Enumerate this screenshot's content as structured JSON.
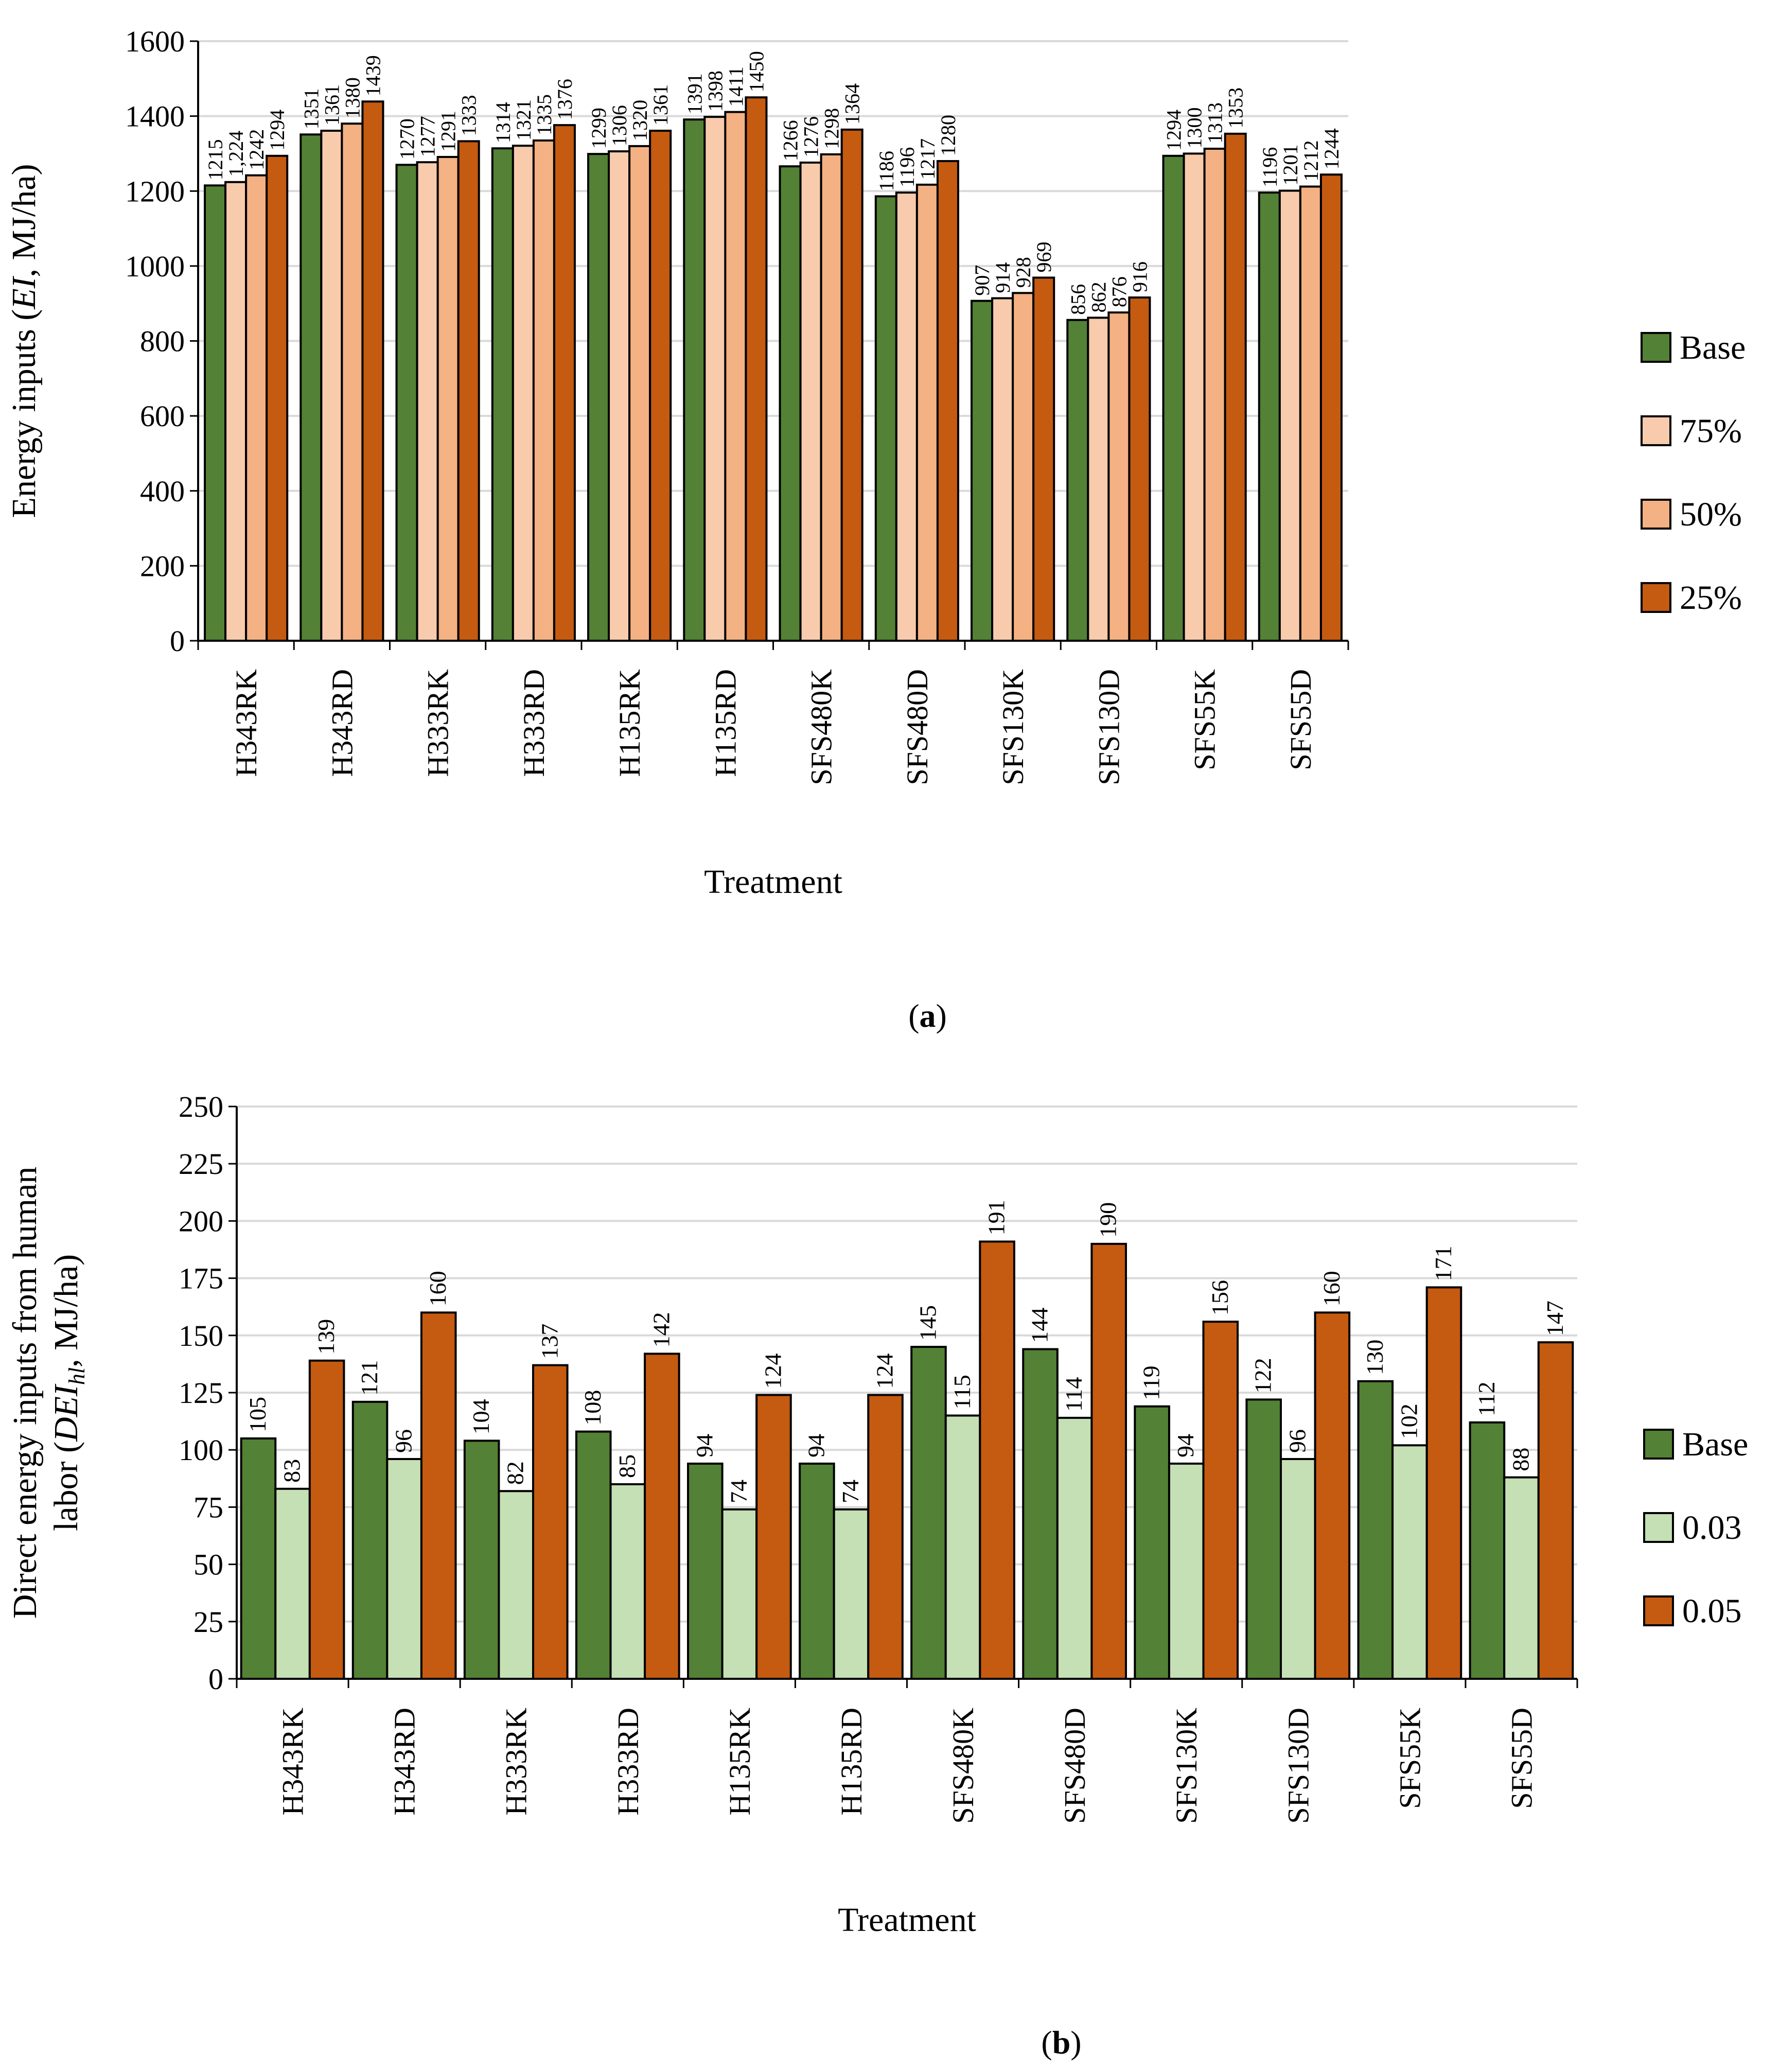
{
  "colors": {
    "base": "#538135",
    "p75": "#F8CBAD",
    "p50": "#F4B183",
    "p25": "#C55A11",
    "p003": "#C5E0B4",
    "p005": "#C55A11",
    "grid": "#D9D9D9",
    "stroke": "#000000"
  },
  "chart_data": [
    {
      "type": "bar",
      "caption_letter": "a",
      "categories": [
        "H343RK",
        "H343RD",
        "H333RK",
        "H333RD",
        "H135RK",
        "H135RD",
        "SFS480K",
        "SFS480D",
        "SFS130K",
        "SFS130D",
        "SFS55K",
        "SFS55D"
      ],
      "series": [
        {
          "name": "Base",
          "color_key": "base",
          "values": [
            1215,
            1351,
            1270,
            1314,
            1299,
            1391,
            1266,
            1186,
            907,
            856,
            1294,
            1196
          ],
          "labels": [
            "1215",
            "1351",
            "1270",
            "1314",
            "1299",
            "1391",
            "1266",
            "1186",
            "907",
            "856",
            "1294",
            "1196"
          ]
        },
        {
          "name": "75%",
          "color_key": "p75",
          "values": [
            1224,
            1361,
            1277,
            1321,
            1306,
            1398,
            1276,
            1196,
            914,
            862,
            1300,
            1201
          ],
          "labels": [
            "1,224",
            "1361",
            "1277",
            "1321",
            "1306",
            "1398",
            "1276",
            "1196",
            "914",
            "862",
            "1300",
            "1201"
          ]
        },
        {
          "name": "50%",
          "color_key": "p50",
          "values": [
            1242,
            1380,
            1291,
            1335,
            1320,
            1411,
            1298,
            1217,
            928,
            876,
            1313,
            1212
          ],
          "labels": [
            "1242",
            "1380",
            "1291",
            "1335",
            "1320",
            "1411",
            "1298",
            "1217",
            "928",
            "876",
            "1313",
            "1212"
          ]
        },
        {
          "name": "25%",
          "color_key": "p25",
          "values": [
            1294,
            1439,
            1333,
            1376,
            1361,
            1450,
            1364,
            1280,
            969,
            916,
            1353,
            1244
          ],
          "labels": [
            "1294",
            "1439",
            "1333",
            "1376",
            "1361",
            "1450",
            "1364",
            "1280",
            "969",
            "916",
            "1353",
            "1244"
          ]
        }
      ],
      "y_ticks": [
        "0",
        "200",
        "400",
        "600",
        "800",
        "1000",
        "1200",
        "1400",
        "1600"
      ],
      "ylim": [
        0,
        1600
      ],
      "ylabel_parts": [
        "Energy inputs (",
        "EI",
        ", MJ/ha)"
      ],
      "xlabel": "Treatment",
      "legend_position": "right",
      "grid": true
    },
    {
      "type": "bar",
      "caption_letter": "b",
      "categories": [
        "H343RK",
        "H343RD",
        "H333RK",
        "H333RD",
        "H135RK",
        "H135RD",
        "SFS480K",
        "SFS480D",
        "SFS130K",
        "SFS130D",
        "SFS55K",
        "SFS55D"
      ],
      "series": [
        {
          "name": "Base",
          "color_key": "base",
          "values": [
            105,
            121,
            104,
            108,
            94,
            94,
            145,
            144,
            119,
            122,
            130,
            112
          ],
          "labels": [
            "105",
            "121",
            "104",
            "108",
            "94",
            "94",
            "145",
            "144",
            "119",
            "122",
            "130",
            "112"
          ]
        },
        {
          "name": "0.03",
          "color_key": "p003",
          "values": [
            83,
            96,
            82,
            85,
            74,
            74,
            115,
            114,
            94,
            96,
            102,
            88
          ],
          "labels": [
            "83",
            "96",
            "82",
            "85",
            "74",
            "74",
            "115",
            "114",
            "94",
            "96",
            "102",
            "88"
          ]
        },
        {
          "name": "0.05",
          "color_key": "p005",
          "values": [
            139,
            160,
            137,
            142,
            124,
            124,
            191,
            190,
            156,
            160,
            171,
            147
          ],
          "labels": [
            "139",
            "160",
            "137",
            "142",
            "124",
            "124",
            "191",
            "190",
            "156",
            "160",
            "171",
            "147"
          ]
        }
      ],
      "y_ticks": [
        "0",
        "25",
        "50",
        "75",
        "100",
        "125",
        "150",
        "175",
        "200",
        "225",
        "250"
      ],
      "ylim": [
        0,
        250
      ],
      "ylabel_line1": "Direct energy inputs from human",
      "ylabel_line2_parts": [
        "labor (",
        "DEI",
        "hl",
        ", MJ/ha)"
      ],
      "xlabel": "Treatment",
      "legend_position": "right",
      "grid": true
    }
  ]
}
